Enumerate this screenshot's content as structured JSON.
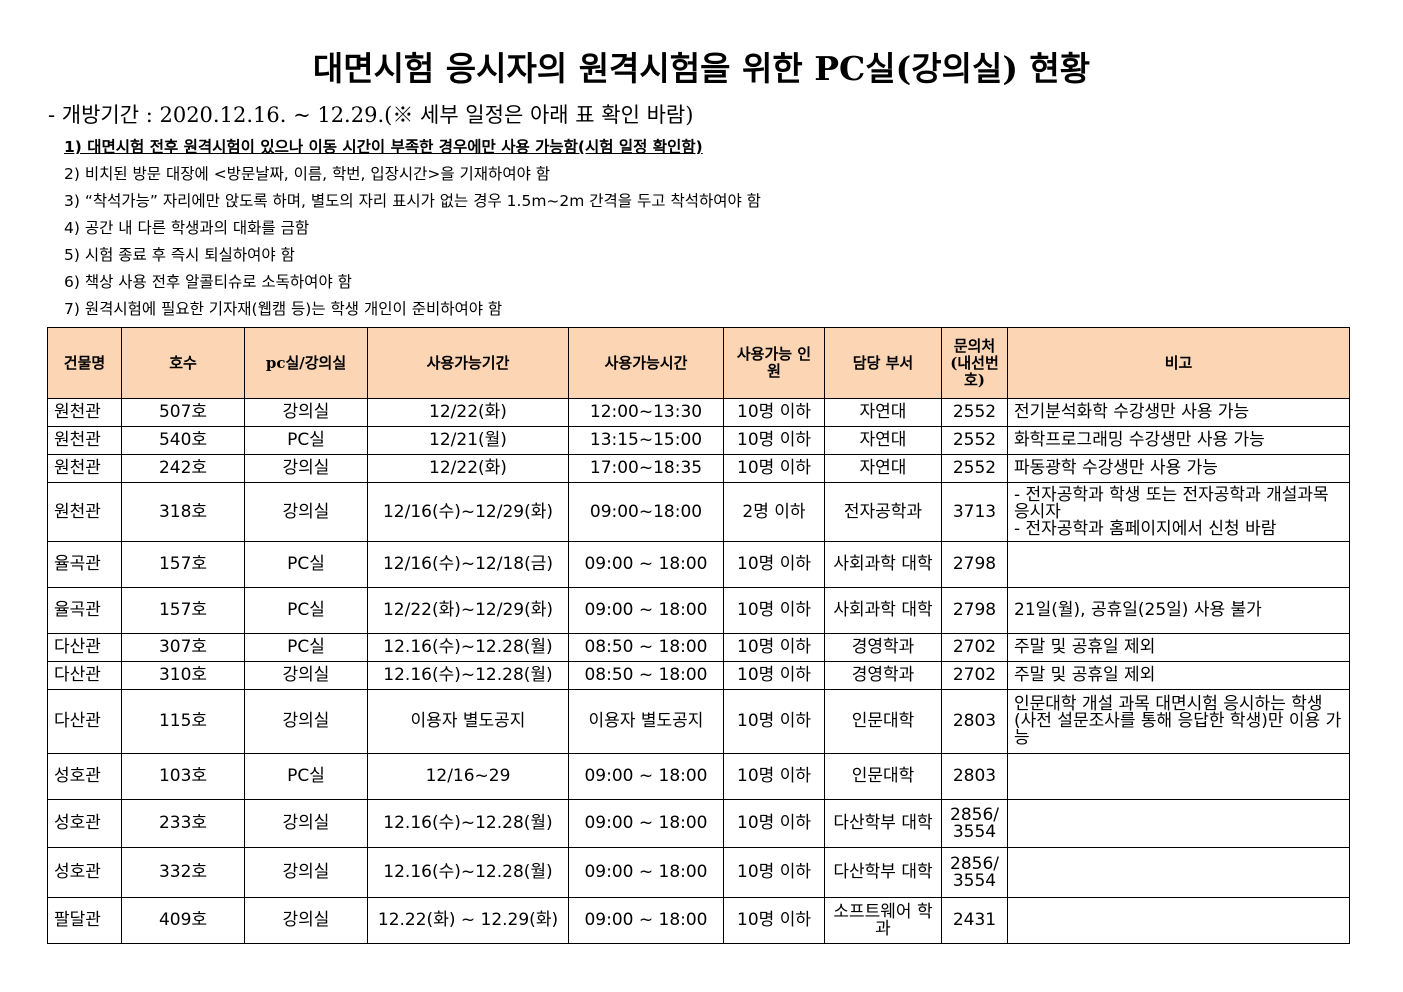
{
  "title": "대면시험 응시자의 원격시험을 위한 PC실(강의실) 현황",
  "period": "- 개방기간 : 2020.12.16. ~ 12.29.(※ 세부 일정은 아래 표 확인 바람)",
  "notes": [
    "1) 대면시험 전후 원격시험이 있으나 이동 시간이 부족한 경우에만 사용 가능함(시험 일정 확인함)",
    "2) 비치된 방문 대장에 <방문날짜, 이름, 학번, 입장시간>을 기재하여야 함",
    "3) “착석가능” 자리에만 앉도록 하며, 별도의 자리 표시가 없는 경우 1.5m~2m 간격을 두고 착석하여야 함",
    "4) 공간 내 다른 학생과의 대화를 금함",
    "5) 시험 종료 후 즉시 퇴실하여야 함",
    "6) 책상 사용 전후 알콜티슈로 소독하여야 함",
    "7) 원격시험에 필요한 기자재(웹캠 등)는 학생 개인이 준비하여야 함"
  ],
  "header_color": "#fcd5b4",
  "columns": [
    "건물명",
    "호수",
    "pc실/강의실",
    "사용가능기간",
    "사용가능시간",
    "사용가능 인원",
    "담당 부서",
    "문의처 (내선번호)",
    "비고"
  ],
  "rows": [
    [
      "원천관",
      "507호",
      "강의실",
      "12/22(화)",
      "12:00~13:30",
      "10명 이하",
      "자연대",
      "2552",
      "전기분석화학 수강생만 사용 가능"
    ],
    [
      "원천관",
      "540호",
      "PC실",
      "12/21(월)",
      "13:15~15:00",
      "10명 이하",
      "자연대",
      "2552",
      "화학프로그래밍 수강생만 사용 가능"
    ],
    [
      "원천관",
      "242호",
      "강의실",
      "12/22(화)",
      "17:00~18:35",
      "10명 이하",
      "자연대",
      "2552",
      "파동광학 수강생만 사용 가능"
    ],
    [
      "원천관",
      "318호",
      "강의실",
      "12/16(수)~12/29(화)",
      "09:00~18:00",
      "2명 이하",
      "전자공학과",
      "3713",
      "- 전자공학과 학생 또는 전자공학과 개설과목 응시자\n- 전자공학과 홈페이지에서 신청 바람"
    ],
    [
      "율곡관",
      "157호",
      "PC실",
      "12/16(수)~12/18(금)",
      "09:00 ~ 18:00",
      "10명 이하",
      "사회과학 대학",
      "2798",
      ""
    ],
    [
      "율곡관",
      "157호",
      "PC실",
      "12/22(화)~12/29(화)",
      "09:00 ~ 18:00",
      "10명 이하",
      "사회과학 대학",
      "2798",
      "21일(월), 공휴일(25일) 사용 불가"
    ],
    [
      "다산관",
      "307호",
      "PC실",
      "12.16(수)~12.28(월)",
      "08:50 ~ 18:00",
      "10명 이하",
      "경영학과",
      "2702",
      "주말 및 공휴일 제외"
    ],
    [
      "다산관",
      "310호",
      "강의실",
      "12.16(수)~12.28(월)",
      "08:50 ~ 18:00",
      "10명 이하",
      "경영학과",
      "2702",
      "주말 및 공휴일 제외"
    ],
    [
      "다산관",
      "115호",
      "강의실",
      "이용자 별도공지",
      "이용자 별도공지",
      "10명 이하",
      "인문대학",
      "2803",
      "인문대학 개설 과목 대면시험 응시하는 학생(사전 설문조사를 통해 응답한 학생)만 이용 가능"
    ],
    [
      "성호관",
      "103호",
      "PC실",
      "12/16~29",
      "09:00 ~ 18:00",
      "10명 이하",
      "인문대학",
      "2803",
      ""
    ],
    [
      "성호관",
      "233호",
      "강의실",
      "12.16(수)~12.28(월)",
      "09:00 ~ 18:00",
      "10명 이하",
      "다산학부 대학",
      "2856/ 3554",
      ""
    ],
    [
      "성호관",
      "332호",
      "강의실",
      "12.16(수)~12.28(월)",
      "09:00 ~ 18:00",
      "10명 이하",
      "다산학부 대학",
      "2856/ 3554",
      ""
    ],
    [
      "팔달관",
      "409호",
      "강의실",
      "12.22(화) ~ 12.29(화)",
      "09:00 ~ 18:00",
      "10명 이하",
      "소프트웨어 학과",
      "2431",
      ""
    ]
  ]
}
